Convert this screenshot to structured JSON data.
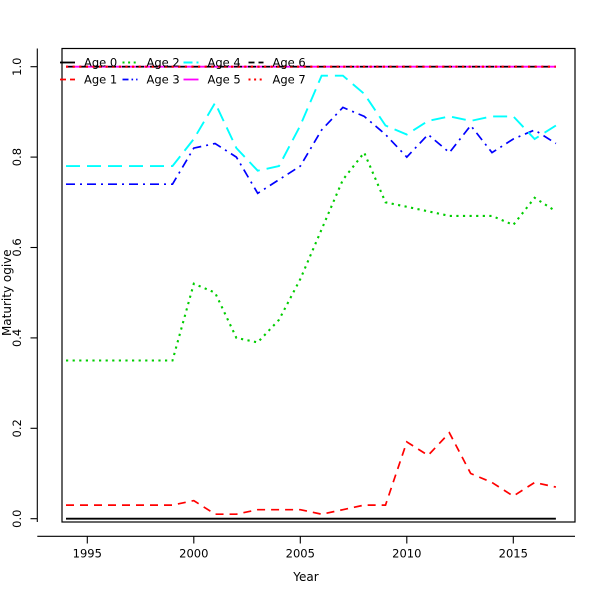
{
  "figure": {
    "background": "#FFFFFF",
    "plot_box_color": "#000000"
  },
  "chart_data": {
    "type": "line",
    "title": "",
    "xlabel": "Year",
    "ylabel": "Maturity ogive",
    "xlim": [
      1994,
      2017
    ],
    "ylim": [
      0.0,
      1.0
    ],
    "grid": false,
    "legend_position": "top",
    "legend_columns": 4,
    "xticks": [
      1995,
      2000,
      2005,
      2010,
      2015
    ],
    "ytick_labels": [
      "0.0",
      "0.2",
      "0.4",
      "0.6",
      "0.8",
      "1.0"
    ],
    "ytick_values": [
      0.0,
      0.2,
      0.4,
      0.6,
      0.8,
      1.0
    ],
    "x": [
      1994,
      1995,
      1996,
      1997,
      1998,
      1999,
      2000,
      2001,
      2002,
      2003,
      2004,
      2005,
      2006,
      2007,
      2008,
      2009,
      2010,
      2011,
      2012,
      2013,
      2014,
      2015,
      2016,
      2017
    ],
    "series": [
      {
        "name": "Age 0",
        "color": "#000000",
        "linestyle": "solid",
        "values": [
          0,
          0,
          0,
          0,
          0,
          0,
          0,
          0,
          0,
          0,
          0,
          0,
          0,
          0,
          0,
          0,
          0,
          0,
          0,
          0,
          0,
          0,
          0,
          0
        ]
      },
      {
        "name": "Age 1",
        "color": "#FF0000",
        "linestyle": "dashed",
        "values": [
          0.03,
          0.03,
          0.03,
          0.03,
          0.03,
          0.03,
          0.04,
          0.01,
          0.01,
          0.02,
          0.02,
          0.02,
          0.01,
          0.02,
          0.03,
          0.03,
          0.17,
          0.14,
          0.19,
          0.1,
          0.08,
          0.05,
          0.08,
          0.07
        ]
      },
      {
        "name": "Age 2",
        "color": "#00CD00",
        "linestyle": "dotted",
        "values": [
          0.35,
          0.35,
          0.35,
          0.35,
          0.35,
          0.35,
          0.52,
          0.5,
          0.4,
          0.39,
          0.44,
          0.53,
          0.64,
          0.75,
          0.81,
          0.7,
          0.69,
          0.68,
          0.67,
          0.67,
          0.67,
          0.65,
          0.71,
          0.68
        ]
      },
      {
        "name": "Age 3",
        "color": "#0000FF",
        "linestyle": "dashdot",
        "values": [
          0.74,
          0.74,
          0.74,
          0.74,
          0.74,
          0.74,
          0.82,
          0.83,
          0.8,
          0.72,
          0.75,
          0.78,
          0.86,
          0.91,
          0.89,
          0.85,
          0.8,
          0.85,
          0.81,
          0.87,
          0.81,
          0.84,
          0.86,
          0.83
        ]
      },
      {
        "name": "Age 4",
        "color": "#00FFFF",
        "linestyle": "longdash",
        "values": [
          0.78,
          0.78,
          0.78,
          0.78,
          0.78,
          0.78,
          0.84,
          0.92,
          0.82,
          0.77,
          0.78,
          0.87,
          0.98,
          0.98,
          0.94,
          0.87,
          0.85,
          0.88,
          0.89,
          0.88,
          0.89,
          0.89,
          0.84,
          0.87
        ]
      },
      {
        "name": "Age 5",
        "color": "#FF00FF",
        "linestyle": "solid",
        "values": [
          1,
          1,
          1,
          1,
          1,
          1,
          1,
          1,
          1,
          1,
          1,
          1,
          1,
          1,
          1,
          1,
          1,
          1,
          1,
          1,
          1,
          1,
          1,
          1
        ]
      },
      {
        "name": "Age 6",
        "color": "#000000",
        "linestyle": "dashed",
        "values": [
          1,
          1,
          1,
          1,
          1,
          1,
          1,
          1,
          1,
          1,
          1,
          1,
          1,
          1,
          1,
          1,
          1,
          1,
          1,
          1,
          1,
          1,
          1,
          1
        ]
      },
      {
        "name": "Age 7",
        "color": "#FF0000",
        "linestyle": "dotted",
        "values": [
          1,
          1,
          1,
          1,
          1,
          1,
          1,
          1,
          1,
          1,
          1,
          1,
          1,
          1,
          1,
          1,
          1,
          1,
          1,
          1,
          1,
          1,
          1,
          1
        ]
      }
    ]
  }
}
